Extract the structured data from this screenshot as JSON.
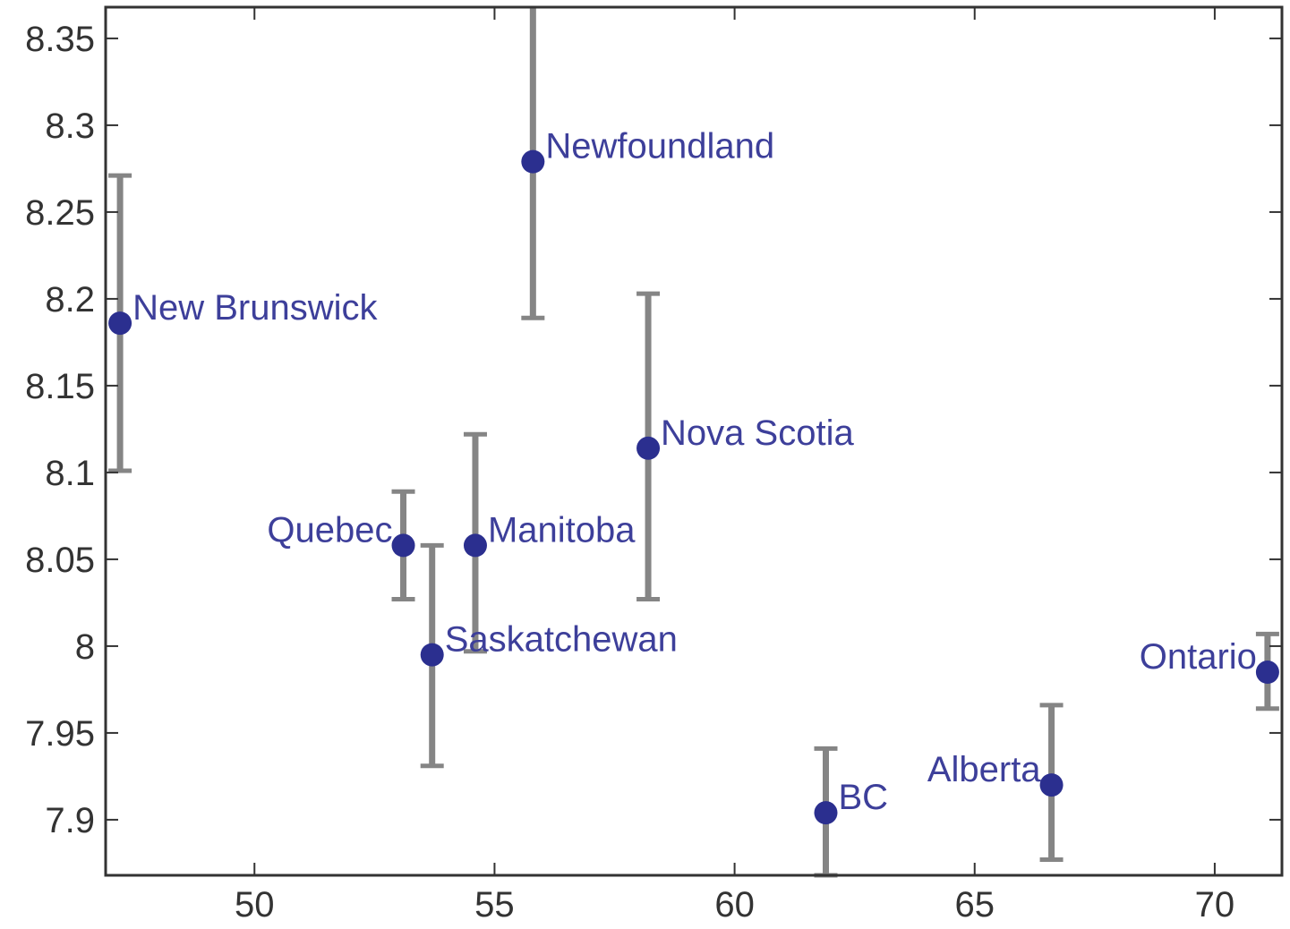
{
  "chart_data": {
    "type": "scatter",
    "title": "",
    "xlabel": "",
    "ylabel": "",
    "xlim": [
      46.9,
      71.4
    ],
    "ylim": [
      7.868,
      8.368
    ],
    "xticks": [
      50,
      55,
      60,
      65,
      70
    ],
    "yticks": [
      7.9,
      7.95,
      8,
      8.05,
      8.1,
      8.15,
      8.2,
      8.25,
      8.3,
      8.35
    ],
    "ytick_labels": [
      "7.9",
      "7.95",
      "8",
      "8.05",
      "8.1",
      "8.15",
      "8.2",
      "8.25",
      "8.3",
      "8.35"
    ],
    "xtick_labels": [
      "50",
      "55",
      "60",
      "65",
      "70"
    ],
    "grid": false,
    "legend": "none",
    "point_color": "#2b2f8f",
    "errorbar_color": "#858585",
    "label_color": "#3d3f9a",
    "points": [
      {
        "label": "New Brunswick",
        "x": 47.2,
        "y": 8.186,
        "y_low": 8.101,
        "y_high": 8.271,
        "label_side": "right"
      },
      {
        "label": "Newfoundland",
        "x": 55.8,
        "y": 8.279,
        "y_low": 8.189,
        "y_high": 8.37,
        "label_side": "right"
      },
      {
        "label": "Nova Scotia",
        "x": 58.2,
        "y": 8.114,
        "y_low": 8.027,
        "y_high": 8.203,
        "label_side": "right"
      },
      {
        "label": "Manitoba",
        "x": 54.6,
        "y": 8.058,
        "y_low": 7.997,
        "y_high": 8.122,
        "label_side": "right"
      },
      {
        "label": "Quebec",
        "x": 53.1,
        "y": 8.058,
        "y_low": 8.027,
        "y_high": 8.089,
        "label_side": "left"
      },
      {
        "label": "Saskatchewan",
        "x": 53.7,
        "y": 7.995,
        "y_low": 7.931,
        "y_high": 8.058,
        "label_side": "right"
      },
      {
        "label": "BC",
        "x": 61.9,
        "y": 7.904,
        "y_low": 7.868,
        "y_high": 7.941,
        "label_side": "right"
      },
      {
        "label": "Alberta",
        "x": 66.6,
        "y": 7.92,
        "y_low": 7.877,
        "y_high": 7.966,
        "label_side": "left"
      },
      {
        "label": "Ontario",
        "x": 71.1,
        "y": 7.985,
        "y_low": 7.964,
        "y_high": 8.007,
        "label_side": "left"
      }
    ]
  }
}
